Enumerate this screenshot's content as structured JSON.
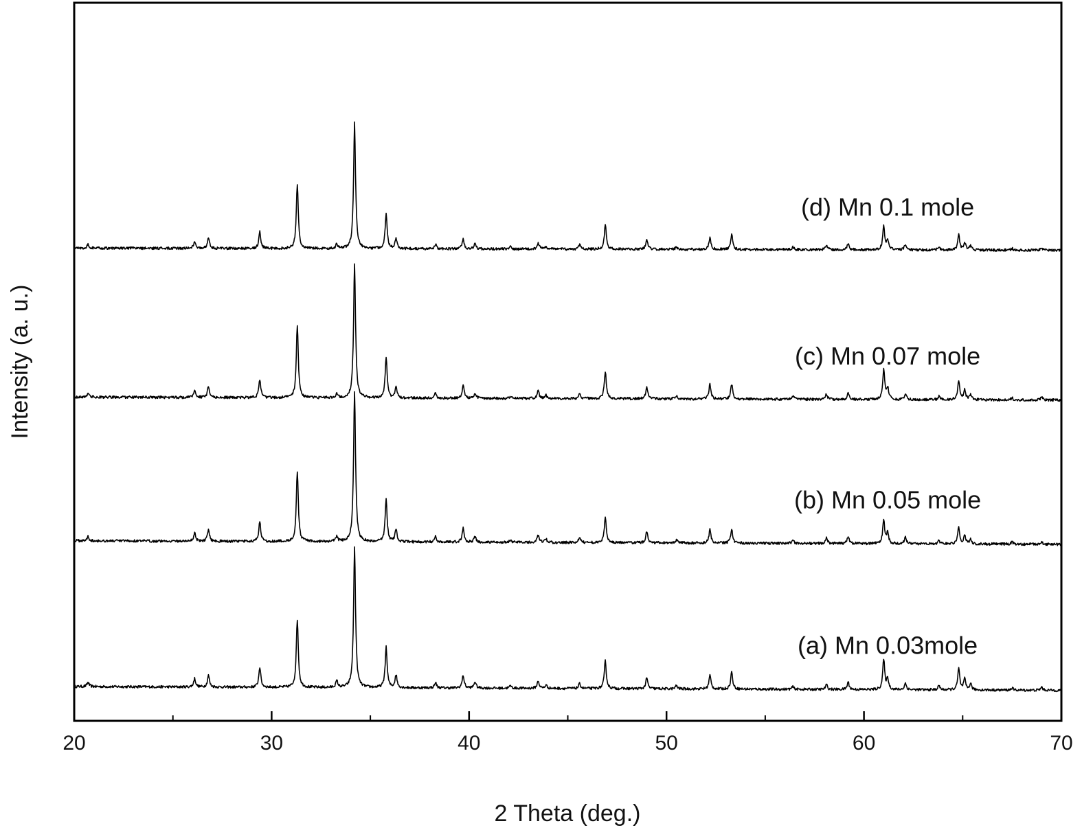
{
  "chart_data": {
    "type": "line",
    "xlabel": "2 Theta (deg.)",
    "ylabel": "Intensity (a. u.)",
    "xlim": [
      20,
      70
    ],
    "x_major_ticks": [
      20,
      30,
      40,
      50,
      60,
      70
    ],
    "x_minor_ticks": [
      25,
      35,
      45,
      55,
      65
    ],
    "y_ticks_shown": false,
    "grid": false,
    "legend": "none",
    "series": [
      {
        "label": "(a) Mn 0.03mole",
        "label_x": 61.2,
        "baseline": 0.0,
        "slope": -0.018,
        "peaks": [
          [
            20.7,
            0.02
          ],
          [
            26.1,
            0.04
          ],
          [
            26.8,
            0.055
          ],
          [
            29.4,
            0.095
          ],
          [
            31.3,
            0.32
          ],
          [
            33.3,
            0.03
          ],
          [
            34.2,
            0.66
          ],
          [
            35.8,
            0.19
          ],
          [
            36.3,
            0.06
          ],
          [
            38.3,
            0.025
          ],
          [
            39.7,
            0.06
          ],
          [
            40.3,
            0.03
          ],
          [
            42.1,
            0.012
          ],
          [
            43.5,
            0.035
          ],
          [
            43.9,
            0.015
          ],
          [
            45.6,
            0.022
          ],
          [
            46.9,
            0.13
          ],
          [
            49.0,
            0.05
          ],
          [
            50.5,
            0.015
          ],
          [
            52.2,
            0.065
          ],
          [
            53.3,
            0.08
          ],
          [
            56.4,
            0.012
          ],
          [
            58.1,
            0.022
          ],
          [
            59.2,
            0.035
          ],
          [
            61.0,
            0.14
          ],
          [
            61.2,
            0.05
          ],
          [
            62.1,
            0.03
          ],
          [
            63.8,
            0.02
          ],
          [
            64.8,
            0.1
          ],
          [
            65.1,
            0.05
          ],
          [
            65.4,
            0.03
          ],
          [
            67.5,
            0.01
          ],
          [
            69.0,
            0.015
          ]
        ]
      },
      {
        "label": "(b) Mn 0.05 mole",
        "label_x": 61.2,
        "baseline": 0.685,
        "slope": -0.017,
        "peaks": [
          [
            20.7,
            0.02
          ],
          [
            26.1,
            0.04
          ],
          [
            26.8,
            0.055
          ],
          [
            29.4,
            0.09
          ],
          [
            31.3,
            0.33
          ],
          [
            33.3,
            0.025
          ],
          [
            34.2,
            0.71
          ],
          [
            35.8,
            0.2
          ],
          [
            36.3,
            0.06
          ],
          [
            38.3,
            0.025
          ],
          [
            39.7,
            0.065
          ],
          [
            40.3,
            0.025
          ],
          [
            42.1,
            0.01
          ],
          [
            43.5,
            0.035
          ],
          [
            43.9,
            0.015
          ],
          [
            45.6,
            0.025
          ],
          [
            46.9,
            0.12
          ],
          [
            49.0,
            0.055
          ],
          [
            50.5,
            0.015
          ],
          [
            52.2,
            0.065
          ],
          [
            53.3,
            0.065
          ],
          [
            56.4,
            0.015
          ],
          [
            58.1,
            0.025
          ],
          [
            59.2,
            0.035
          ],
          [
            61.0,
            0.11
          ],
          [
            61.2,
            0.05
          ],
          [
            62.1,
            0.03
          ],
          [
            63.8,
            0.015
          ],
          [
            64.8,
            0.08
          ],
          [
            65.1,
            0.04
          ],
          [
            65.4,
            0.025
          ],
          [
            67.5,
            0.01
          ],
          [
            69.0,
            0.012
          ]
        ]
      },
      {
        "label": "(c) Mn 0.07 mole",
        "label_x": 61.2,
        "baseline": 1.36,
        "slope": -0.014,
        "peaks": [
          [
            20.7,
            0.02
          ],
          [
            26.1,
            0.035
          ],
          [
            26.8,
            0.05
          ],
          [
            29.4,
            0.085
          ],
          [
            31.3,
            0.34
          ],
          [
            33.3,
            0.02
          ],
          [
            34.2,
            0.63
          ],
          [
            35.8,
            0.19
          ],
          [
            36.3,
            0.055
          ],
          [
            38.3,
            0.025
          ],
          [
            39.7,
            0.06
          ],
          [
            40.3,
            0.025
          ],
          [
            42.1,
            0.01
          ],
          [
            43.5,
            0.035
          ],
          [
            43.9,
            0.015
          ],
          [
            45.6,
            0.022
          ],
          [
            46.9,
            0.13
          ],
          [
            49.0,
            0.055
          ],
          [
            50.5,
            0.015
          ],
          [
            52.2,
            0.07
          ],
          [
            53.3,
            0.07
          ],
          [
            56.4,
            0.015
          ],
          [
            58.1,
            0.025
          ],
          [
            59.2,
            0.03
          ],
          [
            61.0,
            0.14
          ],
          [
            61.2,
            0.055
          ],
          [
            62.1,
            0.03
          ],
          [
            63.8,
            0.015
          ],
          [
            64.8,
            0.09
          ],
          [
            65.1,
            0.045
          ],
          [
            65.4,
            0.025
          ],
          [
            67.5,
            0.01
          ],
          [
            69.0,
            0.012
          ]
        ]
      },
      {
        "label": "(d) Mn 0.1 mole",
        "label_x": 61.2,
        "baseline": 2.06,
        "slope": -0.01,
        "peaks": [
          [
            20.7,
            0.018
          ],
          [
            26.1,
            0.035
          ],
          [
            26.8,
            0.05
          ],
          [
            29.4,
            0.08
          ],
          [
            31.3,
            0.3
          ],
          [
            33.3,
            0.02
          ],
          [
            34.2,
            0.59
          ],
          [
            35.8,
            0.17
          ],
          [
            36.3,
            0.05
          ],
          [
            38.3,
            0.022
          ],
          [
            39.7,
            0.05
          ],
          [
            40.3,
            0.022
          ],
          [
            42.1,
            0.01
          ],
          [
            43.5,
            0.03
          ],
          [
            43.9,
            0.012
          ],
          [
            45.6,
            0.02
          ],
          [
            46.9,
            0.115
          ],
          [
            49.0,
            0.05
          ],
          [
            50.5,
            0.012
          ],
          [
            52.2,
            0.055
          ],
          [
            53.3,
            0.07
          ],
          [
            56.4,
            0.012
          ],
          [
            58.1,
            0.02
          ],
          [
            59.2,
            0.03
          ],
          [
            61.0,
            0.11
          ],
          [
            61.2,
            0.045
          ],
          [
            62.1,
            0.025
          ],
          [
            63.8,
            0.015
          ],
          [
            64.8,
            0.07
          ],
          [
            65.1,
            0.035
          ],
          [
            65.4,
            0.02
          ],
          [
            67.5,
            0.008
          ],
          [
            69.0,
            0.01
          ]
        ]
      }
    ]
  }
}
